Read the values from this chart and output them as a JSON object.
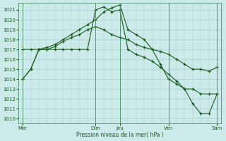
{
  "xlabel": "Pression niveau de la mer( hPa )",
  "background_color": "#cdeaea",
  "grid_color": "#a8cccc",
  "line_color": "#1a5c1a",
  "ylim": [
    1009.5,
    1021.7
  ],
  "yticks": [
    1010,
    1011,
    1012,
    1013,
    1014,
    1015,
    1016,
    1017,
    1018,
    1019,
    1020,
    1021
  ],
  "x_tick_labels": [
    "Mer",
    "Dim",
    "Jeu",
    "Ven",
    "Sam"
  ],
  "x_tick_positions": [
    0,
    9,
    12,
    18,
    24
  ],
  "num_x_points": 25,
  "xlim": [
    -0.5,
    24.5
  ],
  "series1": [
    1014,
    1015,
    1017,
    1017,
    1017.3,
    1017.8,
    1018.2,
    1018.5,
    1019,
    1019.3,
    1019,
    1018.5,
    1018.2,
    1018,
    1017.5,
    1017.2,
    1017,
    1016.8,
    1016.5,
    1016,
    1015.5,
    1015,
    1015,
    1014.8,
    1015.2
  ],
  "series2": [
    1017,
    1017,
    1017,
    1017,
    1017,
    1017,
    1017,
    1017,
    1017,
    1021,
    1021.3,
    1020.8,
    1021,
    1017,
    1016.5,
    1016.2,
    1015.8,
    1015.2,
    1014.5,
    1013.8,
    1013,
    1011.5,
    1010.5,
    1010.5,
    1012.5
  ],
  "series3": [
    1014,
    1015,
    1017,
    1017.2,
    1017.5,
    1018,
    1018.5,
    1019,
    1019.5,
    1020,
    1020.8,
    1021.2,
    1021.5,
    1019,
    1018.5,
    1018,
    1017,
    1015.5,
    1014,
    1013.5,
    1013,
    1013,
    1012.5,
    1012.5,
    1012.5
  ]
}
